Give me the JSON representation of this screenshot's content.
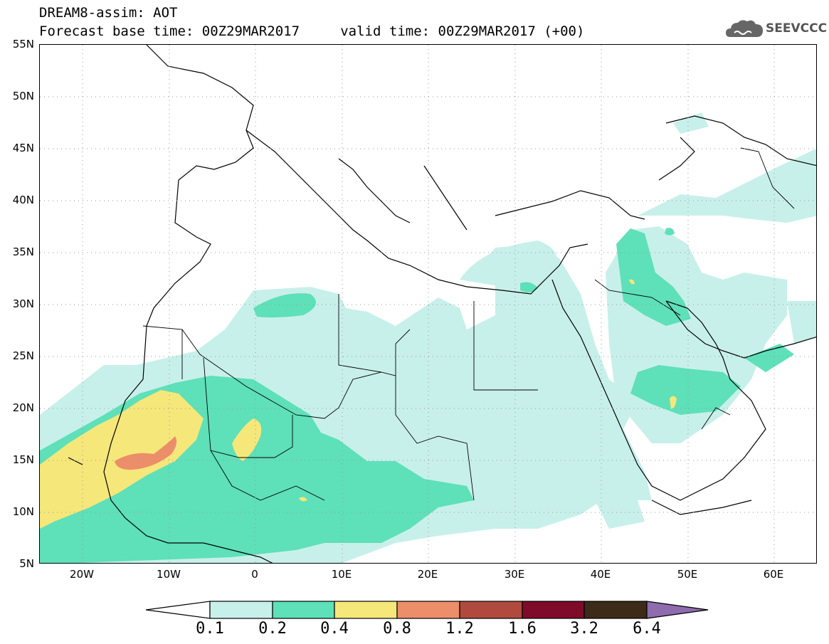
{
  "title": {
    "line1": "DREAM8-assim: AOT",
    "line2": "Forecast base time: 00Z29MAR2017     valid time: 00Z29MAR2017 (+00)"
  },
  "logo": {
    "text": "SEEVCCC",
    "icon": "cloud-icon"
  },
  "map": {
    "projection": "lat-lon",
    "lon_range": [
      -25,
      65
    ],
    "lat_range": [
      5,
      55
    ],
    "lat_labels": [
      "55N",
      "50N",
      "45N",
      "40N",
      "35N",
      "30N",
      "25N",
      "20N",
      "15N",
      "10N",
      "5N"
    ],
    "lon_labels": [
      "20W",
      "10W",
      "0",
      "10E",
      "20E",
      "30E",
      "40E",
      "50E",
      "60E"
    ],
    "gridlines": "dotted"
  },
  "colorbar": {
    "levels": [
      "0.1",
      "0.2",
      "0.4",
      "0.8",
      "1.2",
      "1.6",
      "3.2",
      "6.4"
    ],
    "colors": [
      "#ffffff",
      "#c8f0ea",
      "#5ee0b8",
      "#f5e77a",
      "#ec8e6a",
      "#b04a3e",
      "#7e0b2a",
      "#3e2a18",
      "#8e6cae"
    ]
  }
}
